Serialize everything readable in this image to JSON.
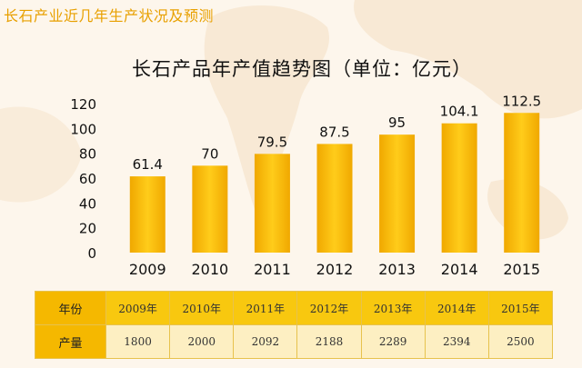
{
  "slide_title": "长石产业近几年生产状况及预测",
  "chart_data": {
    "type": "bar",
    "title": "长石产品年产值趋势图（单位：亿元）",
    "categories": [
      "2009",
      "2010",
      "2011",
      "2012",
      "2013",
      "2014",
      "2015"
    ],
    "values": [
      61.4,
      70,
      79.5,
      87.5,
      95,
      104.1,
      112.5
    ],
    "value_labels": [
      "61.4",
      "70",
      "79.5",
      "87.5",
      "95",
      "104.1",
      "112.5"
    ],
    "yticks": [
      "0",
      "20",
      "40",
      "60",
      "80",
      "100",
      "120"
    ],
    "ylim": [
      0,
      120
    ],
    "grid": false,
    "bar_color": "#f5b400"
  },
  "table": {
    "row1_header": "年份",
    "row2_header": "产量",
    "years": [
      "2009年",
      "2010年",
      "2011年",
      "2012年",
      "2013年",
      "2014年",
      "2015年"
    ],
    "outputs": [
      "1800",
      "2000",
      "2092",
      "2188",
      "2289",
      "2394",
      "2500"
    ]
  }
}
